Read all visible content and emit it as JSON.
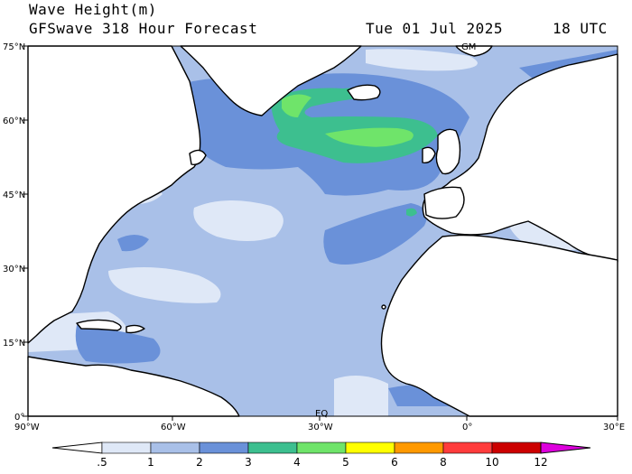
{
  "header": {
    "title": "Wave Height(m)",
    "subtitle": "GFSwave 318 Hour Forecast",
    "date": "Tue 01 Jul 2025",
    "time": "18 UTC"
  },
  "map": {
    "lat_labels": [
      "75°N",
      "60°N",
      "45°N",
      "30°N",
      "15°N",
      "0°"
    ],
    "lon_labels": [
      "90°W",
      "60°W",
      "30°W",
      "0°",
      "30°E"
    ],
    "inner_labels": [
      "GM",
      "EQ"
    ],
    "colors": {
      "land": "#ffffff",
      "coast": "#000000",
      "lt_0_5": "#ffffff",
      "b_0_5_1": "#dfe8f7",
      "b_1_2": "#a9c0e8",
      "b_2_3": "#6a91d9",
      "b_3_4": "#3dbf8f",
      "b_4_5": "#6fe46a",
      "b_5_6": "#ffff00"
    }
  },
  "colorbar": {
    "ticks": [
      ".5",
      "1",
      "2",
      "3",
      "4",
      "5",
      "6",
      "8",
      "10",
      "12"
    ],
    "colors": [
      "#ffffff",
      "#dfe8f7",
      "#a9c0e8",
      "#6a91d9",
      "#3dbf8f",
      "#6fe46a",
      "#ffff00",
      "#ff9900",
      "#ff3c3c",
      "#cc0000",
      "#dd00dd"
    ]
  }
}
